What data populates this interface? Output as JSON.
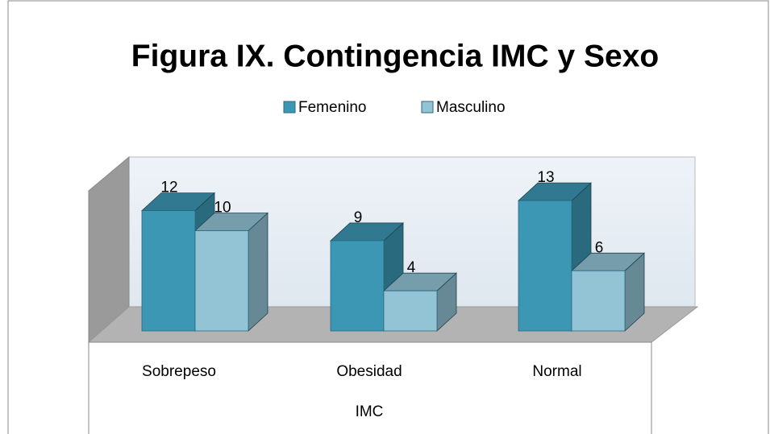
{
  "chart_data": {
    "type": "bar3d",
    "title": "Figura IX. Contingencia IMC y Sexo",
    "categories": [
      "Sobrepeso",
      "Obesidad",
      "Normal"
    ],
    "series": [
      {
        "name": "Femenino",
        "color": "#3c97b4",
        "values": [
          12,
          9,
          13
        ]
      },
      {
        "name": "Masculino",
        "color": "#93c4d6",
        "values": [
          10,
          4,
          6
        ]
      }
    ],
    "x_label": "IMC",
    "legend": "top"
  }
}
